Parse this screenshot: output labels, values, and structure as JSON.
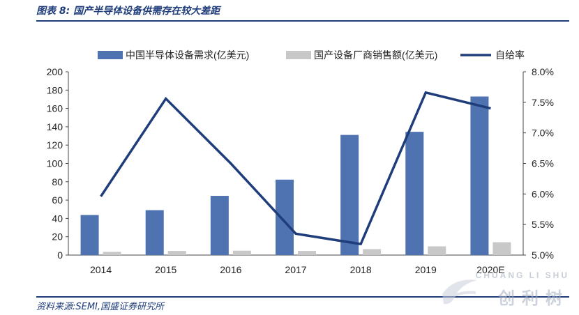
{
  "header": {
    "title": "图表 8:  国产半导体设备供需存在较大差距"
  },
  "footer": {
    "source": "资料来源:SEMI,国盛证券研究所"
  },
  "watermark": {
    "top_text": "CHUANG LI SHU",
    "bottom_text": "创利树"
  },
  "chart_data": {
    "type": "bar",
    "categories": [
      "2014",
      "2015",
      "2016",
      "2017",
      "2018",
      "2019",
      "2020E"
    ],
    "series": [
      {
        "name": "中国半导体设备需求(亿美元)",
        "kind": "bar",
        "color": "#4f72b0",
        "values": [
          43.7,
          49,
          64.6,
          82.3,
          131.1,
          134.5,
          173
        ]
      },
      {
        "name": "国产设备厂商销售额(亿美元)",
        "kind": "bar",
        "color": "#c8c8c8",
        "values": [
          3.5,
          4.5,
          4.8,
          4.5,
          6.5,
          9.5,
          14
        ]
      },
      {
        "name": "自给率",
        "kind": "line",
        "color": "#1f3d7a",
        "axis": "right",
        "values": [
          5.96,
          7.56,
          6.5,
          5.35,
          5.18,
          7.66,
          7.4
        ]
      }
    ],
    "left_axis": {
      "ylim": [
        0,
        200
      ],
      "ticks": [
        "0",
        "20",
        "40",
        "60",
        "80",
        "100",
        "120",
        "140",
        "160",
        "180",
        "200"
      ]
    },
    "right_axis": {
      "ylim": [
        5.0,
        8.0
      ],
      "ticks": [
        "5.0%",
        "5.5%",
        "6.0%",
        "6.5%",
        "7.0%",
        "7.5%",
        "8.0%"
      ]
    },
    "legend": "top",
    "grid": false
  }
}
